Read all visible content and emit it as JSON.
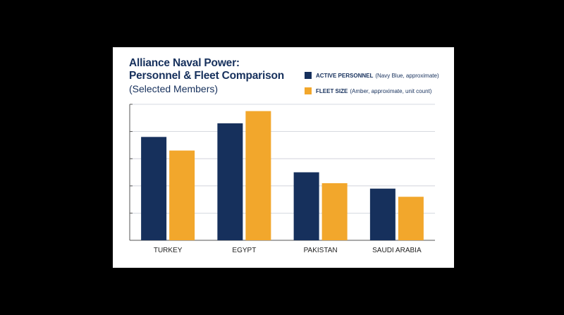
{
  "title_lines": [
    "Alliance Naval Power:",
    "Personnel & Fleet Comparison"
  ],
  "subtitle": "(Selected Members)",
  "legend": [
    {
      "name": "ACTIVE PERSONNEL",
      "note": "(Navy Blue, approximate)",
      "color": "#16305c"
    },
    {
      "name": "FLEET SIZE",
      "note": "(Amber, approximate, unit count)",
      "color": "#f2a72c"
    }
  ],
  "chart_data": {
    "type": "bar",
    "categories": [
      "TURKEY",
      "EGYPT",
      "PAKISTAN",
      "SAUDI ARABIA"
    ],
    "series": [
      {
        "name": "ACTIVE PERSONNEL",
        "color": "#16305c",
        "values": [
          3.8,
          4.3,
          2.5,
          1.9
        ]
      },
      {
        "name": "FLEET SIZE",
        "color": "#f2a72c",
        "values": [
          3.3,
          4.75,
          2.1,
          1.6
        ]
      }
    ],
    "ylim": [
      0,
      5
    ],
    "yticks": [
      0,
      1,
      2,
      3,
      4,
      5
    ],
    "grid": true,
    "legend_position": "top-right",
    "xlabel": "",
    "ylabel": ""
  }
}
